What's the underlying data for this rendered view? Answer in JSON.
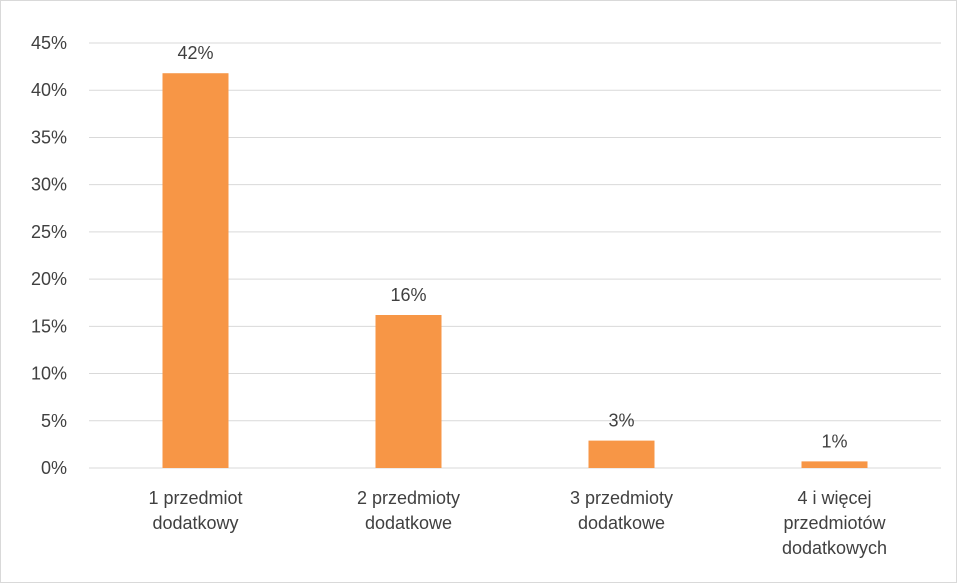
{
  "chart_data": {
    "type": "bar",
    "title": "",
    "xlabel": "",
    "ylabel": "",
    "categories": [
      [
        "1 przedmiot",
        "dodatkowy"
      ],
      [
        "2 przedmioty",
        "dodatkowe"
      ],
      [
        "3 przedmioty",
        "dodatkowe"
      ],
      [
        "4 i więcej",
        "przedmiotów",
        "dodatkowych"
      ]
    ],
    "values": [
      0.418,
      0.162,
      0.029,
      0.007
    ],
    "data_labels": [
      "42%",
      "16%",
      "3%",
      "1%"
    ],
    "ylim": [
      0,
      0.45
    ],
    "y_ticks": [
      0,
      0.05,
      0.1,
      0.15,
      0.2,
      0.25,
      0.3,
      0.35,
      0.4,
      0.45
    ],
    "y_tick_labels": [
      "0%",
      "5%",
      "10%",
      "15%",
      "20%",
      "25%",
      "30%",
      "35%",
      "40%",
      "45%"
    ],
    "grid": true,
    "legend": "none",
    "bar_color": "#F79646",
    "grid_color": "#d9d9d9"
  }
}
